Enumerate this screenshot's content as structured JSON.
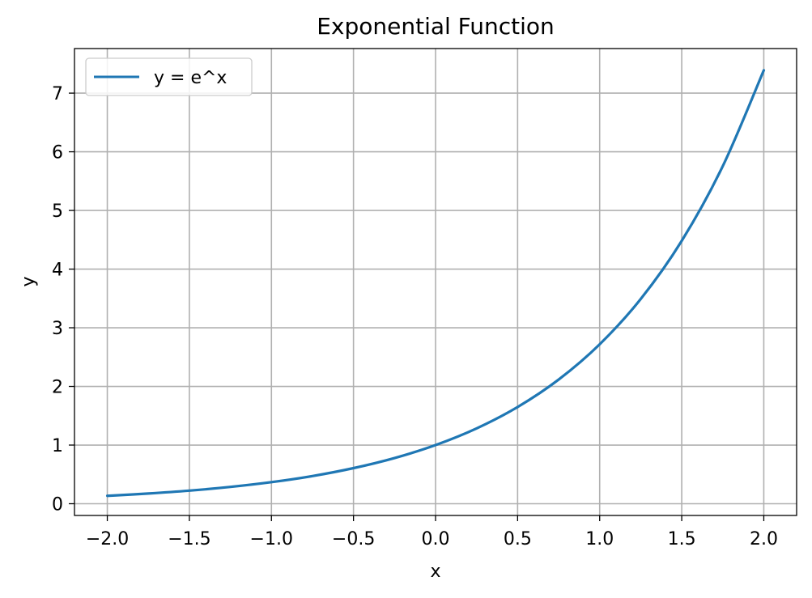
{
  "chart_data": {
    "type": "line",
    "title": "Exponential Function",
    "xlabel": "x",
    "ylabel": "y",
    "xlim": [
      -2.2,
      2.2
    ],
    "ylim": [
      -0.2,
      7.76
    ],
    "xticks": [
      -2.0,
      -1.5,
      -1.0,
      -0.5,
      0.0,
      0.5,
      1.0,
      1.5,
      2.0
    ],
    "xtick_labels": [
      "−2.0",
      "−1.5",
      "−1.0",
      "−0.5",
      "0.0",
      "0.5",
      "1.0",
      "1.5",
      "2.0"
    ],
    "yticks": [
      0,
      1,
      2,
      3,
      4,
      5,
      6,
      7
    ],
    "ytick_labels": [
      "0",
      "1",
      "2",
      "3",
      "4",
      "5",
      "6",
      "7"
    ],
    "grid": true,
    "legend_position": "upper-left",
    "series": [
      {
        "name": "y = e^x",
        "color": "#1f77b4",
        "x": [
          -2.0,
          -1.75,
          -1.5,
          -1.25,
          -1.0,
          -0.75,
          -0.5,
          -0.25,
          0.0,
          0.25,
          0.5,
          0.75,
          1.0,
          1.25,
          1.5,
          1.75,
          2.0
        ],
        "y": [
          0.135,
          0.174,
          0.223,
          0.287,
          0.368,
          0.472,
          0.607,
          0.779,
          1.0,
          1.284,
          1.649,
          2.117,
          2.718,
          3.49,
          4.482,
          5.755,
          7.389
        ]
      }
    ]
  }
}
